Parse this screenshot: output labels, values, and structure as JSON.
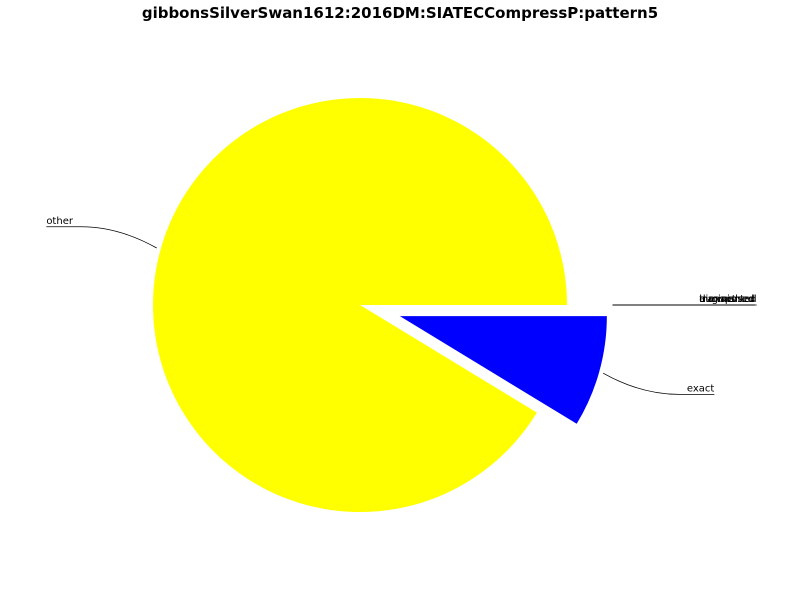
{
  "chart_data": {
    "type": "pie",
    "title": "gibbonsSilverSwan1612:2016DM:SIATECCompressP:pattern5",
    "slices": [
      {
        "label": "other",
        "value": 91.3,
        "color": "#ffff00",
        "exploded": false
      },
      {
        "label": "exact",
        "value": 8.7,
        "color": "#0000ff",
        "exploded": true
      },
      {
        "label": "transposed",
        "value": 0,
        "color": "#ff0000",
        "exploded": true
      },
      {
        "label": "inexact",
        "value": 0,
        "color": "#00ff00",
        "exploded": true
      },
      {
        "label": "augmented",
        "value": 0,
        "color": "#ff00ff",
        "exploded": true
      },
      {
        "label": "diminished",
        "value": 0,
        "color": "#00ffff",
        "exploded": true
      }
    ],
    "legend": "none"
  }
}
